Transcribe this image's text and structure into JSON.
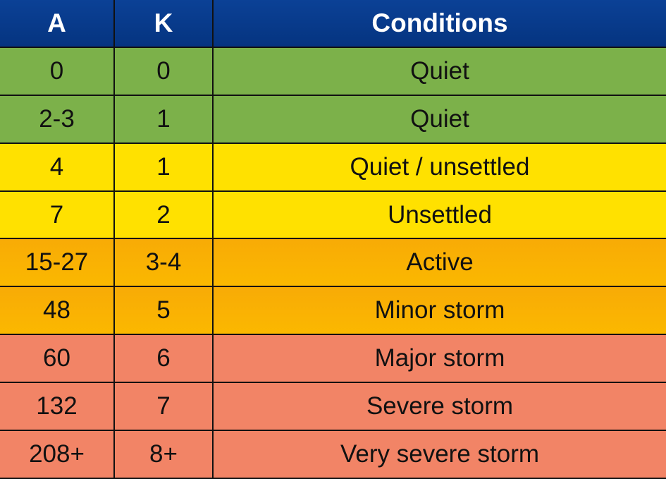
{
  "table": {
    "header": [
      "A",
      "K",
      "Conditions"
    ],
    "rows": [
      [
        "0",
        "0",
        "Quiet"
      ],
      [
        "2-3",
        "1",
        "Quiet"
      ],
      [
        "4",
        "1",
        "Quiet / unsettled"
      ],
      [
        "7",
        "2",
        "Unsettled"
      ],
      [
        "15-27",
        "3-4",
        "Active"
      ],
      [
        "48",
        "5",
        "Minor storm"
      ],
      [
        "60",
        "6",
        "Major storm"
      ],
      [
        "132",
        "7",
        "Severe storm"
      ],
      [
        "208+",
        "8+",
        "Very severe storm"
      ]
    ]
  }
}
